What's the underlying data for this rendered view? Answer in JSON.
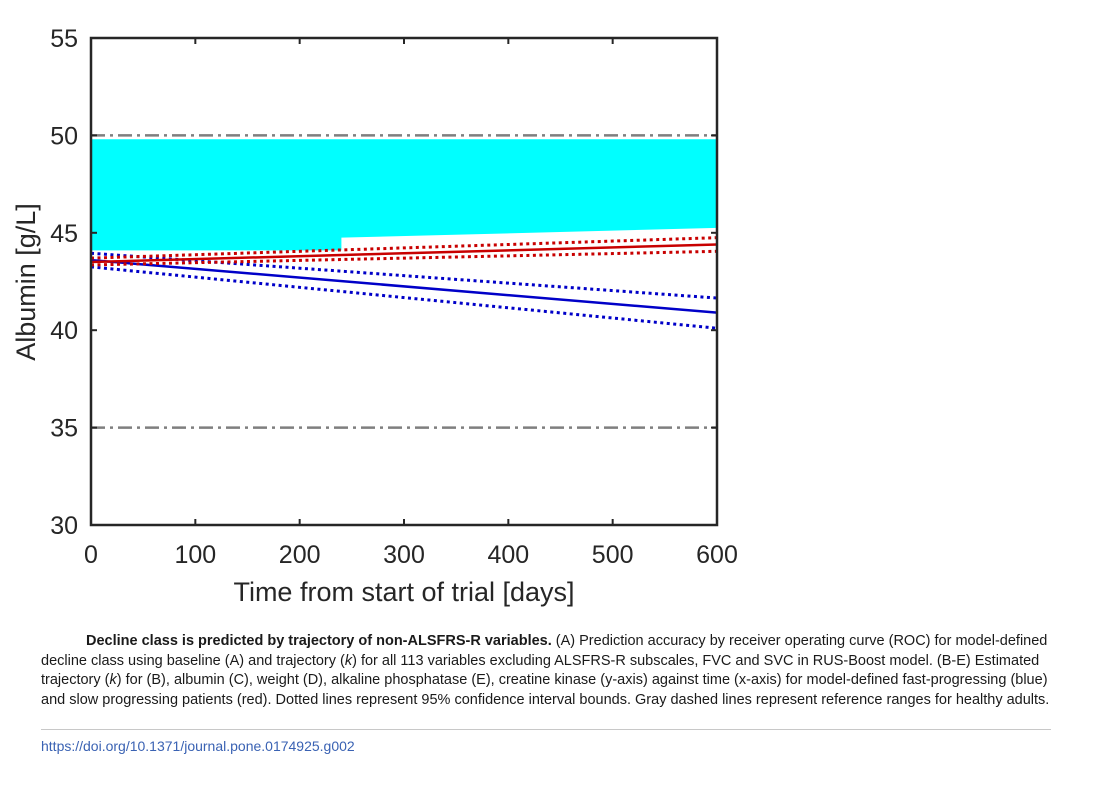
{
  "chart_data": {
    "type": "line",
    "xlabel": "Time from start of trial [days]",
    "ylabel": "Albumin [g/L]",
    "xlim": [
      0,
      600
    ],
    "ylim": [
      30,
      55
    ],
    "x_ticks": [
      0,
      100,
      200,
      300,
      400,
      500,
      600
    ],
    "y_ticks": [
      30,
      35,
      40,
      45,
      50,
      55
    ],
    "grid": false,
    "reference_lines": [
      {
        "y": 50,
        "style": "dash-dot",
        "color": "#7f7f7f"
      },
      {
        "y": 35,
        "style": "dash-dot",
        "color": "#7f7f7f"
      }
    ],
    "highlight_band": {
      "color": "#00ffff",
      "x": [
        0,
        240,
        240,
        600
      ],
      "y_low": [
        44.1,
        44.1,
        44.75,
        45.25
      ],
      "y_high": [
        49.8,
        49.8,
        49.8,
        49.8
      ]
    },
    "series": [
      {
        "color": "#0000c8",
        "x": [
          0,
          600
        ],
        "y": [
          43.6,
          40.9
        ],
        "style": "solid"
      },
      {
        "color": "#0000c8",
        "x": [
          0,
          600
        ],
        "y": [
          43.95,
          41.65
        ],
        "style": "dotted"
      },
      {
        "color": "#0000c8",
        "x": [
          0,
          600
        ],
        "y": [
          43.25,
          40.1
        ],
        "style": "dotted"
      },
      {
        "color": "#c80000",
        "x": [
          0,
          600
        ],
        "y": [
          43.5,
          44.4
        ],
        "style": "solid"
      },
      {
        "color": "#c80000",
        "x": [
          0,
          600
        ],
        "y": [
          43.7,
          44.75
        ],
        "style": "dotted"
      },
      {
        "color": "#c80000",
        "x": [
          0,
          600
        ],
        "y": [
          43.35,
          44.05
        ],
        "style": "dotted"
      }
    ]
  },
  "caption": {
    "title": "Decline class is predicted by trajectory of non-ALSFRS-R variables.",
    "p1": " (A) Prediction accuracy by receiver operating curve (ROC) for model-defined decline class using baseline (A) and trajectory (",
    "k1": "k",
    "p2": ") for all 113 variables excluding ALSFRS-R subscales, FVC and SVC in RUS-Boost model. (B-E) Estimated trajectory (",
    "k2": "k",
    "p3": ") for (B), albumin (C), weight (D), alkaline phosphatase (E), creatine kinase (y-axis) against time (x-axis) for model-defined fast-progressing (blue) and slow progressing patients (red). Dotted lines represent 95% confidence interval bounds. Gray dashed lines represent reference ranges for healthy adults."
  },
  "doi": "https://doi.org/10.1371/journal.pone.0174925.g002"
}
